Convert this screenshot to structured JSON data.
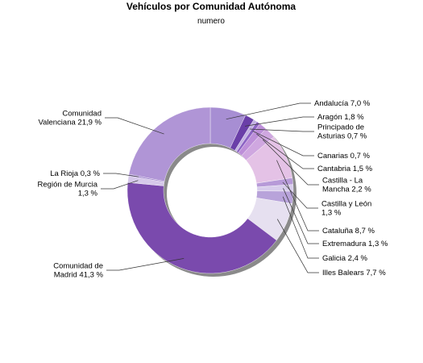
{
  "chart_data": {
    "type": "pie",
    "donut": true,
    "title": "Vehículos por Comunidad Autónoma",
    "subtitle": "numero",
    "unit": "%",
    "slices": [
      {
        "name": "Andalucía",
        "value": 7.0,
        "label": [
          "Andalucía 7,0 %"
        ],
        "color": "#a78ed3"
      },
      {
        "name": "Aragón",
        "value": 1.8,
        "label": [
          "Aragón 1,8 %"
        ],
        "color": "#6a3fa8"
      },
      {
        "name": "Principado de Asturias",
        "value": 0.7,
        "label": [
          "Principado de",
          "Asturias 0,7 %"
        ],
        "color": "#c3b2e3"
      },
      {
        "name": "Canarias",
        "value": 0.7,
        "label": [
          "Canarias 0,7 %"
        ],
        "color": "#8c63c4"
      },
      {
        "name": "Cantabria",
        "value": 1.5,
        "label": [
          "Cantabria 1,5 %"
        ],
        "color": "#bd8fd9"
      },
      {
        "name": "Castilla - La Mancha",
        "value": 2.2,
        "label": [
          "Castilla - La",
          "Mancha 2,2 %"
        ],
        "color": "#cfa7e0"
      },
      {
        "name": "Cataluña",
        "value": 8.7,
        "label": [
          "Cataluña 8,7 %"
        ],
        "color": "#e4c2e6"
      },
      {
        "name": "Castilla y León",
        "value": 1.3,
        "label": [
          "Castilla y León",
          "1,3 %"
        ],
        "color": "#b79ad8"
      },
      {
        "name": "Extremadura",
        "value": 1.3,
        "label": [
          "Extremadura 1,3 %"
        ],
        "color": "#d8cdec"
      },
      {
        "name": "Galicia",
        "value": 2.4,
        "label": [
          "Galicia 2,4 %"
        ],
        "color": "#b8a3da"
      },
      {
        "name": "Illes Balears",
        "value": 7.7,
        "label": [
          "Illes Balears 7,7 %"
        ],
        "color": "#e6e0f0"
      },
      {
        "name": "Comunidad de Madrid",
        "value": 41.3,
        "label": [
          "Comunidad de",
          "Madrid 41,3 %"
        ],
        "color": "#7a4aad"
      },
      {
        "name": "Región de Murcia",
        "value": 1.3,
        "label": [
          "Región de Murcia",
          "1,3 %"
        ],
        "color": "#d6c9ea"
      },
      {
        "name": "La Rioja",
        "value": 0.3,
        "label": [
          "La Rioja 0,3 %"
        ],
        "color": "#9c80cc"
      },
      {
        "name": "Comunidad Valenciana",
        "value": 21.9,
        "label": [
          "Comunidad",
          "Valenciana 21,9 %"
        ],
        "color": "#b095d6"
      }
    ]
  }
}
